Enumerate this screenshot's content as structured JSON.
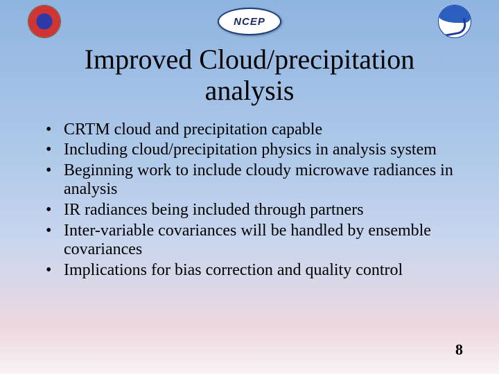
{
  "header": {
    "logo_left_name": "nws-logo",
    "logo_center_text": "NCEP",
    "logo_right_name": "noaa-logo"
  },
  "title_line1": "Improved Cloud/precipitation",
  "title_line2": "analysis",
  "bullets": [
    "CRTM cloud and precipitation capable",
    "Including cloud/precipitation physics in analysis system",
    "Beginning work to include cloudy microwave radiances in analysis",
    "IR radiances being included through partners",
    "Inter-variable covariances will be handled by ensemble covariances",
    "Implications for bias correction and quality control"
  ],
  "page_number": "8",
  "colors": {
    "bg_top": "#8fb4e0",
    "bg_bottom": "#f8f4f4",
    "text": "#000000"
  }
}
